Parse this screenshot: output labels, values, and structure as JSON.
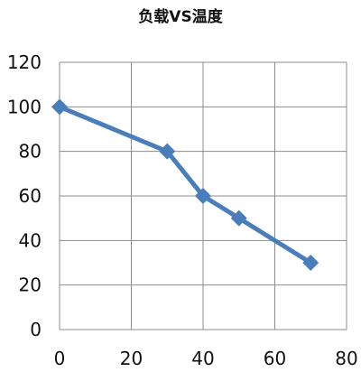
{
  "chart_data": {
    "type": "line",
    "title": "负载VS温度",
    "xlabel": "",
    "ylabel": "",
    "xlim": [
      0,
      80
    ],
    "ylim": [
      0,
      120
    ],
    "x_ticks": [
      0,
      20,
      40,
      60,
      80
    ],
    "y_ticks": [
      0,
      20,
      40,
      60,
      80,
      100,
      120
    ],
    "grid": true,
    "legend": "none",
    "series": [
      {
        "x": [
          0,
          30,
          40,
          50,
          70
        ],
        "y": [
          100,
          80,
          60,
          50,
          30
        ],
        "marker": "diamond",
        "color": "#4a7ebb"
      }
    ]
  }
}
